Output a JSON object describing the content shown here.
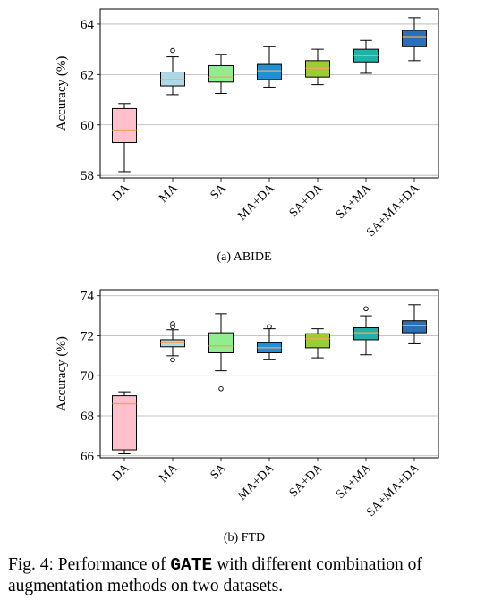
{
  "chart_data": [
    {
      "type": "box",
      "subcaption": "(a) ABIDE",
      "ylabel": "Accuracy (%)",
      "ylim": [
        57.9,
        64.6
      ],
      "yticks": [
        58,
        60,
        62,
        64
      ],
      "grid": "horizontal",
      "categories": [
        "DA",
        "MA",
        "SA",
        "MA+DA",
        "SA+DA",
        "SA+MA",
        "SA+MA+DA"
      ],
      "colors": [
        "#ffc0cb",
        "#add8e6",
        "#90ee90",
        "#1e90d6",
        "#9acd32",
        "#20b2aa",
        "#2c6fb5"
      ],
      "median_color": "#f4a460",
      "boxes": [
        {
          "whislo": 58.15,
          "q1": 59.3,
          "med": 59.8,
          "q3": 60.65,
          "whishi": 60.85,
          "fliers": []
        },
        {
          "whislo": 61.2,
          "q1": 61.55,
          "med": 61.8,
          "q3": 62.1,
          "whishi": 62.7,
          "fliers": [
            62.95
          ]
        },
        {
          "whislo": 61.25,
          "q1": 61.7,
          "med": 61.9,
          "q3": 62.35,
          "whishi": 62.8,
          "fliers": []
        },
        {
          "whislo": 61.5,
          "q1": 61.8,
          "med": 62.15,
          "q3": 62.4,
          "whishi": 63.1,
          "fliers": []
        },
        {
          "whislo": 61.6,
          "q1": 61.9,
          "med": 62.25,
          "q3": 62.55,
          "whishi": 63.0,
          "fliers": []
        },
        {
          "whislo": 62.05,
          "q1": 62.5,
          "med": 62.75,
          "q3": 63.0,
          "whishi": 63.35,
          "fliers": []
        },
        {
          "whislo": 62.55,
          "q1": 63.1,
          "med": 63.5,
          "q3": 63.75,
          "whishi": 64.25,
          "fliers": []
        }
      ]
    },
    {
      "type": "box",
      "subcaption": "(b) FTD",
      "ylabel": "Accuracy (%)",
      "ylim": [
        65.9,
        74.3
      ],
      "yticks": [
        66,
        68,
        70,
        72,
        74
      ],
      "grid": "horizontal",
      "categories": [
        "DA",
        "MA",
        "SA",
        "MA+DA",
        "SA+DA",
        "SA+MA",
        "SA+MA+DA"
      ],
      "colors": [
        "#ffc0cb",
        "#add8e6",
        "#90ee90",
        "#1e90d6",
        "#9acd32",
        "#20b2aa",
        "#2c6fb5"
      ],
      "median_color": "#f4a460",
      "boxes": [
        {
          "whislo": 66.1,
          "q1": 66.3,
          "med": 68.6,
          "q3": 69.0,
          "whishi": 69.2,
          "fliers": []
        },
        {
          "whislo": 71.0,
          "q1": 71.45,
          "med": 71.65,
          "q3": 71.8,
          "whishi": 72.3,
          "fliers": [
            70.8,
            72.45,
            72.6
          ]
        },
        {
          "whislo": 70.25,
          "q1": 71.15,
          "med": 71.5,
          "q3": 72.15,
          "whishi": 73.1,
          "fliers": [
            69.35
          ]
        },
        {
          "whislo": 70.8,
          "q1": 71.15,
          "med": 71.4,
          "q3": 71.65,
          "whishi": 72.35,
          "fliers": [
            72.45
          ]
        },
        {
          "whislo": 70.9,
          "q1": 71.4,
          "med": 71.85,
          "q3": 72.1,
          "whishi": 72.35,
          "fliers": []
        },
        {
          "whislo": 71.05,
          "q1": 71.8,
          "med": 72.15,
          "q3": 72.4,
          "whishi": 73.0,
          "fliers": [
            73.35
          ]
        },
        {
          "whislo": 71.6,
          "q1": 72.15,
          "med": 72.5,
          "q3": 72.75,
          "whishi": 73.55,
          "fliers": []
        }
      ]
    }
  ],
  "caption": {
    "prefix": "Fig. 4: Performance of ",
    "method": "GATE",
    "suffix": " with different combination of augmentation methods on two datasets."
  }
}
